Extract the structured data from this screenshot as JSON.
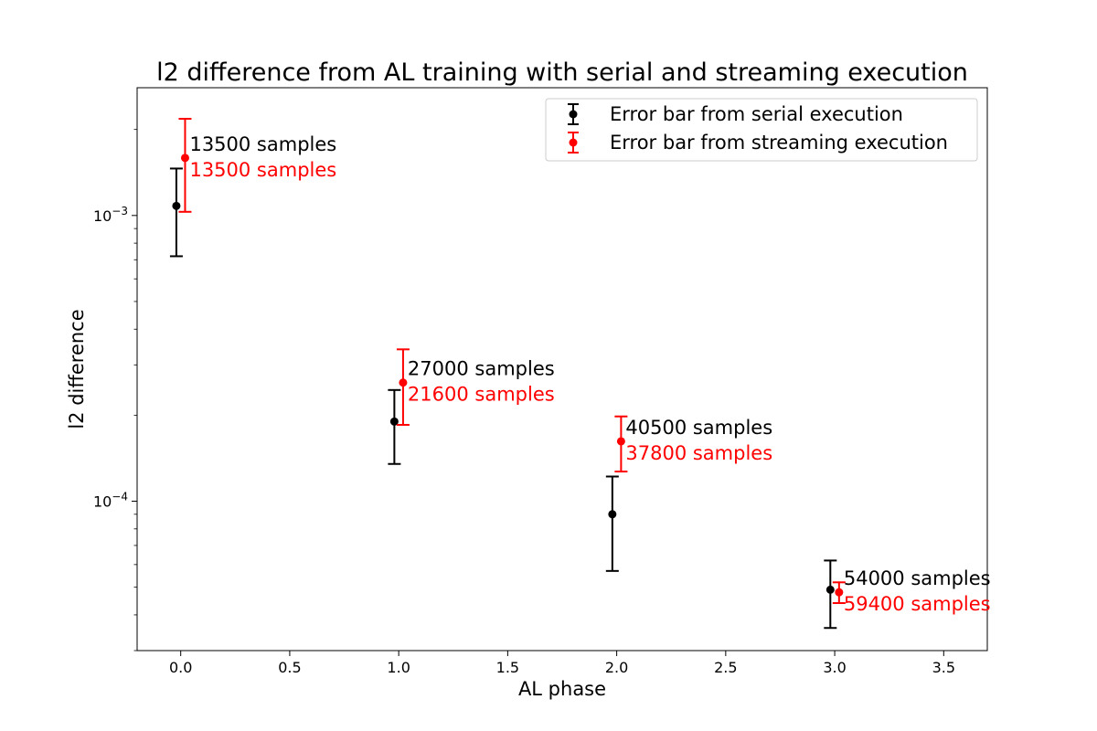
{
  "chart_data": {
    "type": "scatter",
    "title": "l2 difference from AL training with serial and streaming execution",
    "xlabel": "AL phase",
    "ylabel": "l2 difference",
    "xlim": [
      -0.2,
      3.7
    ],
    "ylim": [
      3e-05,
      0.0028
    ],
    "yscale": "log",
    "x_ticks": [
      "0.0",
      "0.5",
      "1.0",
      "1.5",
      "2.0",
      "2.5",
      "3.0",
      "3.5"
    ],
    "x_tick_values": [
      0,
      0.5,
      1,
      1.5,
      2,
      2.5,
      3,
      3.5
    ],
    "y_ticks": [
      {
        "base": "10",
        "exp": "−3",
        "value": 0.001
      },
      {
        "base": "10",
        "exp": "−4",
        "value": 0.0001
      }
    ],
    "grid": false,
    "legend_position": "top-right",
    "series": [
      {
        "name": "Error bar from serial execution",
        "color": "#000000",
        "x": [
          -0.02,
          0.98,
          1.98,
          2.98
        ],
        "y": [
          0.00108,
          0.00019,
          9e-05,
          4.9e-05
        ],
        "y_low": [
          0.00072,
          0.000135,
          5.7e-05,
          3.6e-05
        ],
        "y_high": [
          0.00146,
          0.000245,
          0.000122,
          6.2e-05
        ],
        "labels": [
          "13500 samples",
          "27000 samples",
          "40500 samples",
          "54000 samples"
        ]
      },
      {
        "name": "Error bar from streaming execution",
        "color": "#ff0000",
        "x": [
          0.02,
          1.02,
          2.02,
          3.02
        ],
        "y": [
          0.00159,
          0.00026,
          0.000162,
          4.8e-05
        ],
        "y_low": [
          0.00103,
          0.000185,
          0.000127,
          4.4e-05
        ],
        "y_high": [
          0.00218,
          0.00034,
          0.000198,
          5.2e-05
        ],
        "labels": [
          "13500 samples",
          "21600 samples",
          "37800 samples",
          "59400 samples"
        ]
      }
    ]
  }
}
